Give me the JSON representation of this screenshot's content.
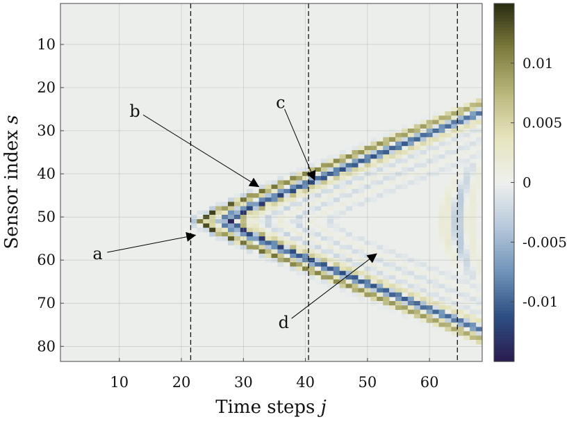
{
  "chart_data": {
    "type": "heatmap",
    "title": "",
    "xlabel": "Time steps",
    "xlabel_var": "j",
    "ylabel": "Sensor index",
    "ylabel_var": "s",
    "xlim": [
      0.5,
      68.5
    ],
    "ylim": [
      0.5,
      83.5
    ],
    "y_inverted": true,
    "xticks": [
      10,
      20,
      30,
      40,
      50,
      60
    ],
    "yticks": [
      10,
      20,
      30,
      40,
      50,
      60,
      70,
      80
    ],
    "grid": true,
    "colorbar": {
      "range": [
        -0.015,
        0.015
      ],
      "ticks": [
        -0.01,
        -0.005,
        0,
        0.005,
        0.01
      ],
      "tick_labels": [
        "-0.01",
        "-0.005",
        "0",
        "0.005",
        "0.01"
      ],
      "colors": [
        "#2a1b4f",
        "#2d4e82",
        "#6f93b9",
        "#b6c8da",
        "#eef0ee",
        "#e6e4bd",
        "#b9b67c",
        "#7d7c3c",
        "#2a2c13"
      ]
    },
    "vlines": {
      "x": [
        21.5,
        40.5,
        64.5
      ],
      "style": "dashed"
    },
    "wavefronts": {
      "source_sensor": 51,
      "apex_time": 20.5,
      "spread_time_per_sensor": 0.045,
      "rings": [
        {
          "offset": 1.5,
          "amp": -0.004
        },
        {
          "offset": 2.8,
          "amp": 0.015
        },
        {
          "offset": 4.3,
          "amp": 0.006
        },
        {
          "offset": 6.0,
          "amp": -0.009
        },
        {
          "offset": 7.6,
          "amp": -0.015
        },
        {
          "offset": 9.2,
          "amp": 0.009
        },
        {
          "offset": 11.0,
          "amp": 0.003
        },
        {
          "offset": 13.2,
          "amp": -0.003
        },
        {
          "offset": 15.4,
          "amp": 0.0018
        },
        {
          "offset": 18.0,
          "amp": -0.0025
        },
        {
          "offset": 20.6,
          "amp": 0.0014
        },
        {
          "offset": 23.4,
          "amp": -0.0018
        }
      ],
      "late_bands": [
        {
          "time": 62.5,
          "amp": 0.0025,
          "sensor_range": [
            40,
            62
          ]
        },
        {
          "time": 64.5,
          "amp": -0.004,
          "sensor_range": [
            38,
            64
          ]
        },
        {
          "time": 66.5,
          "amp": 0.002,
          "sensor_range": [
            36,
            66
          ]
        }
      ]
    },
    "annotations": [
      {
        "label": "a",
        "text_x": 6.5,
        "text_y": 58.5,
        "arrow_to": [
          22.3,
          54.2
        ]
      },
      {
        "label": "b",
        "text_x": 12.5,
        "text_y": 25.5,
        "arrow_to": [
          32.5,
          43.0
        ]
      },
      {
        "label": "c",
        "text_x": 36.0,
        "text_y": 23.5,
        "arrow_to": [
          41.5,
          41.5
        ]
      },
      {
        "label": "d",
        "text_x": 36.5,
        "text_y": 74.5,
        "arrow_to": [
          51.5,
          58.5
        ]
      }
    ]
  }
}
